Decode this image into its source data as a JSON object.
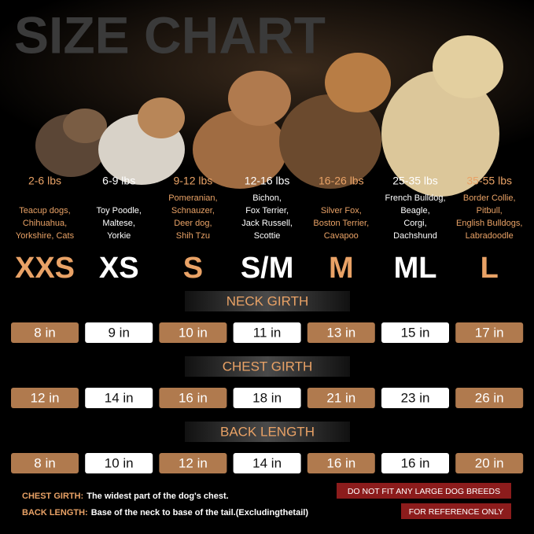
{
  "title": "SIZE CHART",
  "columns": [
    {
      "weight": "2-6 lbs",
      "breeds": [
        "Teacup dogs,",
        "Chihuahua,",
        "Yorkshire,  Cats"
      ],
      "size": "XXS"
    },
    {
      "weight": "6-9 lbs",
      "breeds": [
        "Toy Poodle,",
        "Maltese,",
        "Yorkie"
      ],
      "size": "XS"
    },
    {
      "weight": "9-12 lbs",
      "breeds": [
        "Pomeranian,",
        "Schnauzer,",
        "Deer dog,",
        "Shih Tzu"
      ],
      "size": "S"
    },
    {
      "weight": "12-16 lbs",
      "breeds": [
        "Bichon,",
        "Fox Terrier,",
        "Jack Russell,",
        "Scottie"
      ],
      "size": "S/M"
    },
    {
      "weight": "16-26 lbs",
      "breeds": [
        "Silver Fox,",
        "Boston Terrier,",
        "Cavapoo"
      ],
      "size": "M"
    },
    {
      "weight": "25-35 lbs",
      "breeds": [
        "French Bulldog,",
        "Beagle,",
        "Corgi,",
        "Dachshund"
      ],
      "size": "ML"
    },
    {
      "weight": "35-55 lbs",
      "breeds": [
        "Border Collie,",
        "Pitbull,",
        "English Bulldogs,",
        "Labradoodle"
      ],
      "size": "L"
    }
  ],
  "measurements": [
    {
      "label": "NECK GIRTH",
      "values": [
        "8 in",
        "9 in",
        "10 in",
        "11 in",
        "13 in",
        "15 in",
        "17 in"
      ]
    },
    {
      "label": "CHEST GIRTH",
      "values": [
        "12 in",
        "14 in",
        "16 in",
        "18 in",
        "21 in",
        "23 in",
        "26 in"
      ]
    },
    {
      "label": "BACK LENGTH",
      "values": [
        "8 in",
        "10 in",
        "12 in",
        "14 in",
        "16 in",
        "16 in",
        "20 in"
      ]
    }
  ],
  "notes": [
    {
      "term": "CHEST GIRTH:",
      "text": "The widest part of the dog's chest."
    },
    {
      "term": "BACK LENGTH:",
      "text": "Base of the neck to base of the tail.(Excludingthetail)"
    }
  ],
  "warnings": [
    "DO NOT FIT ANY LARGE DOG BREEDS",
    "FOR REFERENCE ONLY"
  ]
}
